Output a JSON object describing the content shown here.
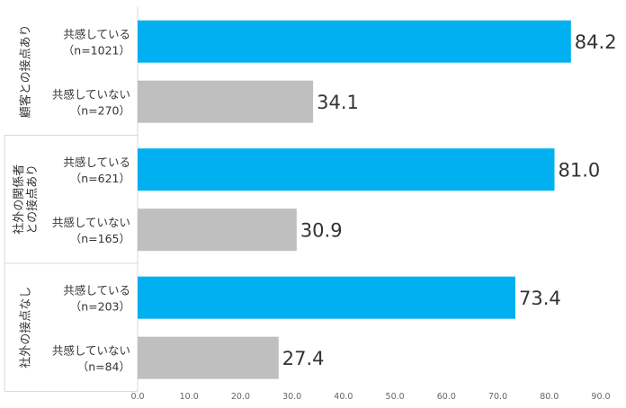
{
  "colors": {
    "highlight": "#00b0f0",
    "muted": "#bfbfbf",
    "frame": "#d9d9d9"
  },
  "chart_data": {
    "type": "bar",
    "orientation": "horizontal",
    "xlim": [
      0,
      90
    ],
    "ticks": [
      "0.0",
      "10.0",
      "20.0",
      "30.0",
      "40.0",
      "50.0",
      "60.0",
      "70.0",
      "80.0",
      "90.0"
    ],
    "groups": [
      {
        "label_lines": [
          "顧客との接点あり"
        ],
        "bars": [
          {
            "line1": "共感している",
            "line2": "（n=1021）",
            "value": 84.2,
            "label": "84.2",
            "color": "#00b0f0"
          },
          {
            "line1": "共感していない",
            "line2": "（n=270）",
            "value": 34.1,
            "label": "34.1",
            "color": "#bfbfbf"
          }
        ]
      },
      {
        "label_lines": [
          "社外の関係者",
          "との接点あり"
        ],
        "bars": [
          {
            "line1": "共感している",
            "line2": "（n=621）",
            "value": 81.0,
            "label": "81.0",
            "color": "#00b0f0"
          },
          {
            "line1": "共感していない",
            "line2": "（n=165）",
            "value": 30.9,
            "label": "30.9",
            "color": "#bfbfbf"
          }
        ]
      },
      {
        "label_lines": [
          "社外の接点なし"
        ],
        "bars": [
          {
            "line1": "共感している",
            "line2": "（n=203）",
            "value": 73.4,
            "label": "73.4",
            "color": "#00b0f0"
          },
          {
            "line1": "共感していない",
            "line2": "（n=84）",
            "value": 27.4,
            "label": "27.4",
            "color": "#bfbfbf"
          }
        ]
      }
    ]
  }
}
